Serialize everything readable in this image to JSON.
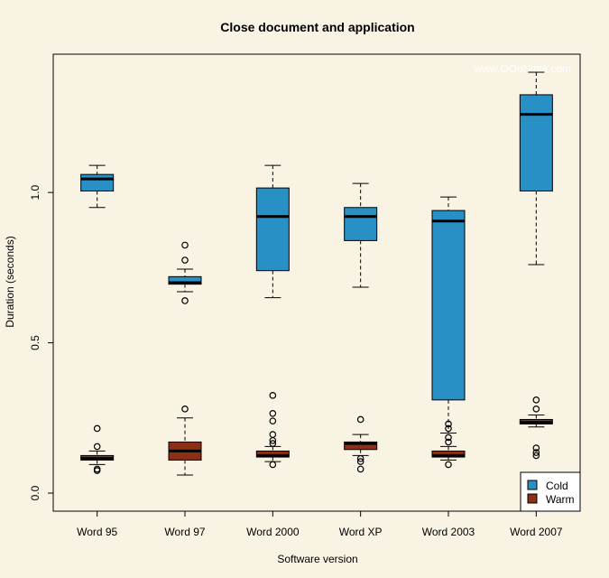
{
  "chart_data": {
    "type": "boxplot",
    "title": "Close document and application",
    "xlabel": "Software version",
    "ylabel": "Duration (seconds)",
    "ylim": [
      -0.06,
      1.46
    ],
    "yticks": [
      0.0,
      0.5,
      1.0
    ],
    "ytick_labels": [
      "0.0",
      "0.5",
      "1.0"
    ],
    "watermark": "www.OOoNinja.com",
    "categories": [
      "Word 95",
      "Word 97",
      "Word 2000",
      "Word XP",
      "Word 2003",
      "Word 2007"
    ],
    "series": [
      {
        "name": "Cold",
        "color": "#2990c6",
        "boxes": [
          {
            "whisker_low": 0.95,
            "q1": 1.005,
            "median": 1.045,
            "q3": 1.06,
            "whisker_high": 1.09,
            "outliers": []
          },
          {
            "whisker_low": 0.67,
            "q1": 0.695,
            "median": 0.7,
            "q3": 0.72,
            "whisker_high": 0.745,
            "outliers": [
              0.64,
              0.775,
              0.825
            ]
          },
          {
            "whisker_low": 0.65,
            "q1": 0.74,
            "median": 0.92,
            "q3": 1.015,
            "whisker_high": 1.09,
            "outliers": []
          },
          {
            "whisker_low": 0.685,
            "q1": 0.84,
            "median": 0.92,
            "q3": 0.95,
            "whisker_high": 1.03,
            "outliers": []
          },
          {
            "whisker_low": 0.2,
            "q1": 0.31,
            "median": 0.905,
            "q3": 0.94,
            "whisker_high": 0.985,
            "outliers": []
          },
          {
            "whisker_low": 0.76,
            "q1": 1.005,
            "median": 1.26,
            "q3": 1.325,
            "whisker_high": 1.4,
            "outliers": []
          }
        ]
      },
      {
        "name": "Warm",
        "color": "#8b2f17",
        "boxes": [
          {
            "whisker_low": 0.095,
            "q1": 0.11,
            "median": 0.115,
            "q3": 0.125,
            "whisker_high": 0.14,
            "outliers": [
              0.075,
              0.08,
              0.155,
              0.215
            ]
          },
          {
            "whisker_low": 0.06,
            "q1": 0.11,
            "median": 0.14,
            "q3": 0.17,
            "whisker_high": 0.25,
            "outliers": [
              0.28
            ]
          },
          {
            "whisker_low": 0.105,
            "q1": 0.12,
            "median": 0.125,
            "q3": 0.14,
            "whisker_high": 0.155,
            "outliers": [
              0.095,
              0.165,
              0.175,
              0.195,
              0.24,
              0.265,
              0.325
            ]
          },
          {
            "whisker_low": 0.125,
            "q1": 0.145,
            "median": 0.165,
            "q3": 0.17,
            "whisker_high": 0.195,
            "outliers": [
              0.08,
              0.105,
              0.115,
              0.245
            ]
          },
          {
            "whisker_low": 0.11,
            "q1": 0.12,
            "median": 0.125,
            "q3": 0.14,
            "whisker_high": 0.155,
            "outliers": [
              0.095,
              0.17,
              0.185,
              0.215,
              0.23
            ]
          },
          {
            "whisker_low": 0.22,
            "q1": 0.23,
            "median": 0.235,
            "q3": 0.245,
            "whisker_high": 0.26,
            "outliers": [
              0.125,
              0.135,
              0.15,
              0.28,
              0.31
            ]
          }
        ]
      }
    ],
    "legend": {
      "position": "bottom-right",
      "entries": [
        "Cold",
        "Warm"
      ]
    }
  }
}
